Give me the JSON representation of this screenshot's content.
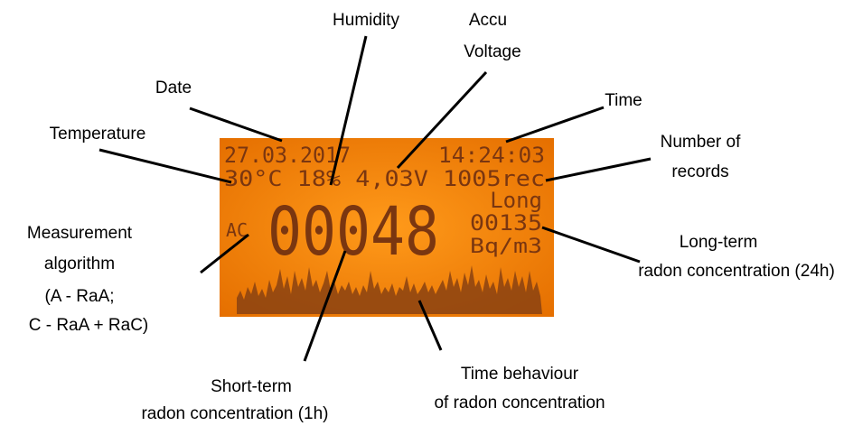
{
  "lcd": {
    "date": "27.03.2017",
    "time": "14:24:03",
    "status": "30°C 18% 4,03V 1005rec",
    "mode": "Long",
    "long_value": "00135",
    "unit": "Bq/m3",
    "algorithm": "AC",
    "short_value": "00048"
  },
  "labels": {
    "humidity": "Humidity",
    "voltage": [
      "Accu",
      "Voltage"
    ],
    "date": "Date",
    "time": "Time",
    "temperature": "Temperature",
    "records": [
      "Number of",
      "records"
    ],
    "algorithm": [
      "Measurement",
      "algorithm",
      "(A - RaA;",
      "C - RaA + RaC)"
    ],
    "long_term": [
      "Long-term",
      "radon concentration (24h)"
    ],
    "short_term": [
      "Short-term",
      "radon concentration (1h)"
    ],
    "behaviour": [
      "Time behaviour",
      "of radon concentration"
    ]
  }
}
